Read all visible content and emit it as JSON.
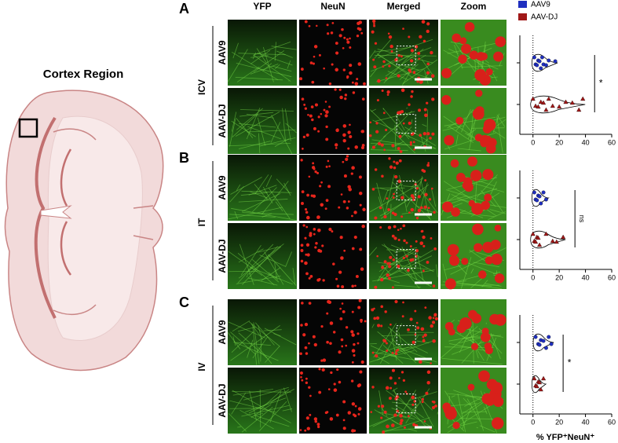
{
  "figure_title": "Cortex Region",
  "columns": [
    "YFP",
    "NeuN",
    "Merged",
    "Zoom"
  ],
  "legend": [
    {
      "name": "AAV9",
      "color": "#1f2fbf"
    },
    {
      "name": "AAV-DJ",
      "color": "#a01818"
    }
  ],
  "xlim": [
    -10,
    60
  ],
  "xticks": [
    0,
    20,
    40,
    60
  ],
  "xlabel": "% YFP⁺NeuN⁺",
  "panels": [
    {
      "letter": "A",
      "route": "ICV",
      "rows": [
        "AAV9",
        "AAV-DJ"
      ],
      "significance": "*",
      "groups": [
        [
          1,
          2,
          3,
          4,
          5,
          6,
          7,
          8,
          10,
          12,
          17
        ],
        [
          0,
          2,
          4,
          6,
          8,
          10,
          12,
          15,
          20,
          25,
          30,
          35,
          38
        ]
      ]
    },
    {
      "letter": "B",
      "route": "IT",
      "rows": [
        "AAV9",
        "AAV-DJ"
      ],
      "significance": "ns",
      "groups": [
        [
          1,
          2,
          3,
          4,
          5,
          6,
          8,
          10
        ],
        [
          0,
          1,
          2,
          3,
          4,
          5,
          10,
          15,
          18,
          23
        ]
      ]
    },
    {
      "letter": "C",
      "route": "IV",
      "rows": [
        "AAV9",
        "AAV-DJ"
      ],
      "significance": "*",
      "groups": [
        [
          2,
          4,
          5,
          6,
          8,
          10,
          12,
          14
        ],
        [
          1,
          2,
          3,
          4,
          5,
          6,
          8
        ]
      ]
    }
  ]
}
